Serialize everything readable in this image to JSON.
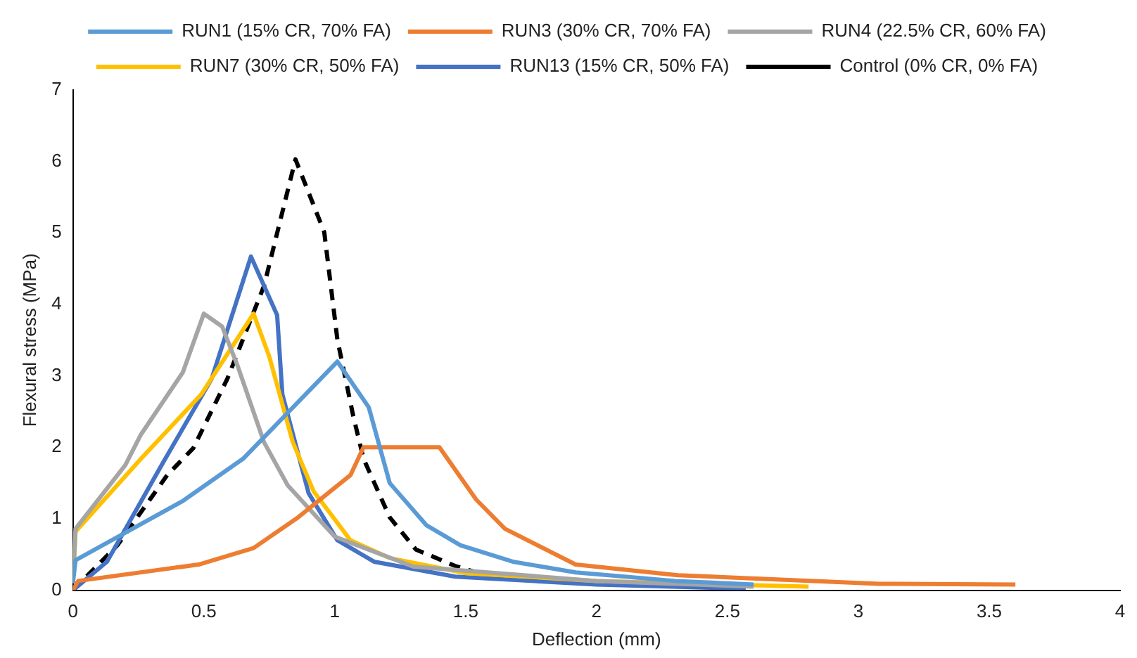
{
  "chart_data": {
    "type": "line",
    "xlabel": "Deflection (mm)",
    "ylabel": "Flexural stress (MPa)",
    "xlim": [
      0,
      4
    ],
    "xticks": [
      0,
      0.5,
      1,
      1.5,
      2,
      2.5,
      3,
      3.5,
      4
    ],
    "ylim": [
      0,
      7
    ],
    "yticks": [
      0,
      1,
      2,
      3,
      4,
      5,
      6,
      7
    ],
    "grid": false,
    "legend": "top",
    "marker": "none",
    "series": [
      {
        "name": "RUN1 (15% CR, 70% FA)",
        "color": "#5b9bd5",
        "line_style": "solid",
        "x": [
          0,
          0.01,
          0.42,
          0.65,
          1.01,
          1.13,
          1.21,
          1.35,
          1.48,
          1.68,
          1.92,
          2.3,
          2.6
        ],
        "values": [
          0.1,
          0.42,
          1.25,
          1.84,
          3.2,
          2.56,
          1.5,
          0.91,
          0.63,
          0.4,
          0.25,
          0.13,
          0.08
        ]
      },
      {
        "name": "RUN3 (30% CR, 70% FA)",
        "color": "#ed7d31",
        "line_style": "solid",
        "x": [
          0,
          0.02,
          0.48,
          0.69,
          0.86,
          1.06,
          1.11,
          1.4,
          1.54,
          1.65,
          1.92,
          2.31,
          3.08,
          3.6
        ],
        "values": [
          0,
          0.13,
          0.36,
          0.59,
          1.02,
          1.61,
          2,
          2,
          1.27,
          0.86,
          0.36,
          0.21,
          0.09,
          0.08
        ]
      },
      {
        "name": "RUN4 (22.5% CR, 60% FA)",
        "color": "#a5a5a5",
        "line_style": "solid",
        "x": [
          0,
          0.01,
          0.2,
          0.26,
          0.42,
          0.5,
          0.57,
          0.63,
          0.73,
          0.82,
          1.0,
          1.3,
          2.0,
          2.6
        ],
        "values": [
          0.1,
          0.86,
          1.75,
          2.18,
          3.05,
          3.87,
          3.69,
          3.13,
          2.07,
          1.47,
          0.75,
          0.33,
          0.13,
          0.05
        ]
      },
      {
        "name": "RUN7 (30% CR, 50% FA)",
        "color": "#ffc000",
        "line_style": "solid",
        "x": [
          0,
          0.01,
          0.26,
          0.49,
          0.69,
          0.75,
          0.84,
          0.92,
          1.06,
          1.21,
          1.5,
          2.0,
          2.81
        ],
        "values": [
          0.1,
          0.82,
          1.84,
          2.74,
          3.87,
          3.27,
          2.07,
          1.38,
          0.7,
          0.45,
          0.24,
          0.13,
          0.05
        ]
      },
      {
        "name": "RUN13 (15% CR, 50% FA)",
        "color": "#4472c4",
        "line_style": "solid",
        "x": [
          0,
          0.13,
          0.34,
          0.53,
          0.68,
          0.78,
          0.8,
          0.9,
          1.01,
          1.15,
          1.46,
          2.0,
          2.57
        ],
        "values": [
          0,
          0.4,
          1.76,
          2.96,
          4.67,
          3.85,
          2.74,
          1.36,
          0.7,
          0.4,
          0.19,
          0.08,
          0.02
        ]
      },
      {
        "name": "Control (0% CR, 0% FA)",
        "color": "#000000",
        "line_style": "dashed",
        "x": [
          0,
          0.17,
          0.36,
          0.46,
          0.59,
          0.73,
          0.85,
          0.96,
          1.01,
          1.07,
          1.11,
          1.21,
          1.31,
          1.46,
          1.54,
          2.1
        ],
        "values": [
          0,
          0.63,
          1.61,
          1.99,
          2.96,
          4.26,
          6.03,
          5.01,
          3.51,
          2.45,
          1.84,
          1.02,
          0.57,
          0.34,
          0.25,
          0.07
        ]
      }
    ]
  }
}
